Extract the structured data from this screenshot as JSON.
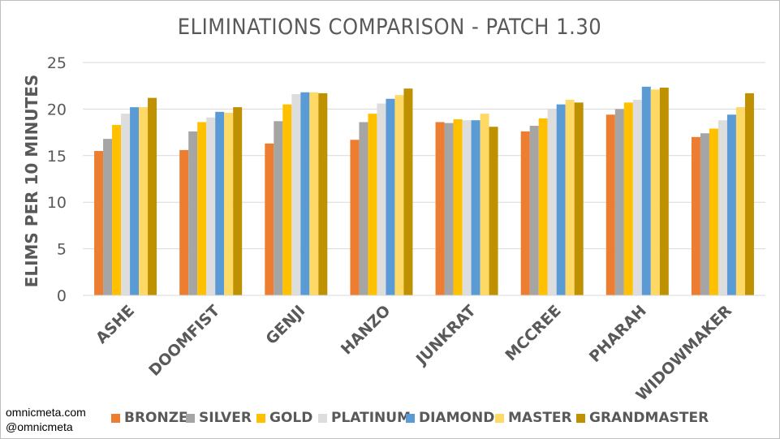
{
  "credits": {
    "site": "omnicmeta.com",
    "handle": "@omnicmeta"
  },
  "chart_data": {
    "type": "bar",
    "title": "ELIMINATIONS COMPARISON - PATCH 1.30",
    "xlabel": "",
    "ylabel": "ELIMS PER 10 MINUTES",
    "ylim": [
      0,
      25
    ],
    "yticks": [
      0,
      5,
      10,
      15,
      20,
      25
    ],
    "grid": true,
    "legend_position": "bottom",
    "categories": [
      "ASHE",
      "DOOMFIST",
      "GENJI",
      "HANZO",
      "JUNKRAT",
      "MCCREE",
      "PHARAH",
      "WIDOWMAKER"
    ],
    "series": [
      {
        "name": "BRONZE",
        "color": "#ed7d31",
        "values": [
          15.5,
          15.6,
          16.3,
          16.7,
          18.6,
          17.6,
          19.4,
          17.0
        ]
      },
      {
        "name": "SILVER",
        "color": "#a5a5a5",
        "values": [
          16.8,
          17.6,
          18.7,
          18.6,
          18.5,
          18.2,
          20.0,
          17.4
        ]
      },
      {
        "name": "GOLD",
        "color": "#ffc000",
        "values": [
          18.3,
          18.6,
          20.5,
          19.5,
          18.9,
          19.0,
          20.7,
          17.9
        ]
      },
      {
        "name": "PLATINUM",
        "color": "#dddddd",
        "values": [
          19.5,
          19.1,
          21.6,
          20.6,
          18.8,
          20.0,
          21.0,
          18.8
        ]
      },
      {
        "name": "DIAMOND",
        "color": "#5b9bd5",
        "values": [
          20.2,
          19.7,
          21.8,
          21.1,
          18.8,
          20.5,
          22.4,
          19.4
        ]
      },
      {
        "name": "MASTER",
        "color": "#ffd966",
        "values": [
          20.2,
          19.6,
          21.8,
          21.5,
          19.5,
          21.0,
          22.1,
          20.2
        ]
      },
      {
        "name": "GRANDMASTER",
        "color": "#bf9000",
        "values": [
          21.2,
          20.2,
          21.7,
          22.2,
          18.1,
          20.7,
          22.3,
          21.7
        ]
      }
    ]
  }
}
